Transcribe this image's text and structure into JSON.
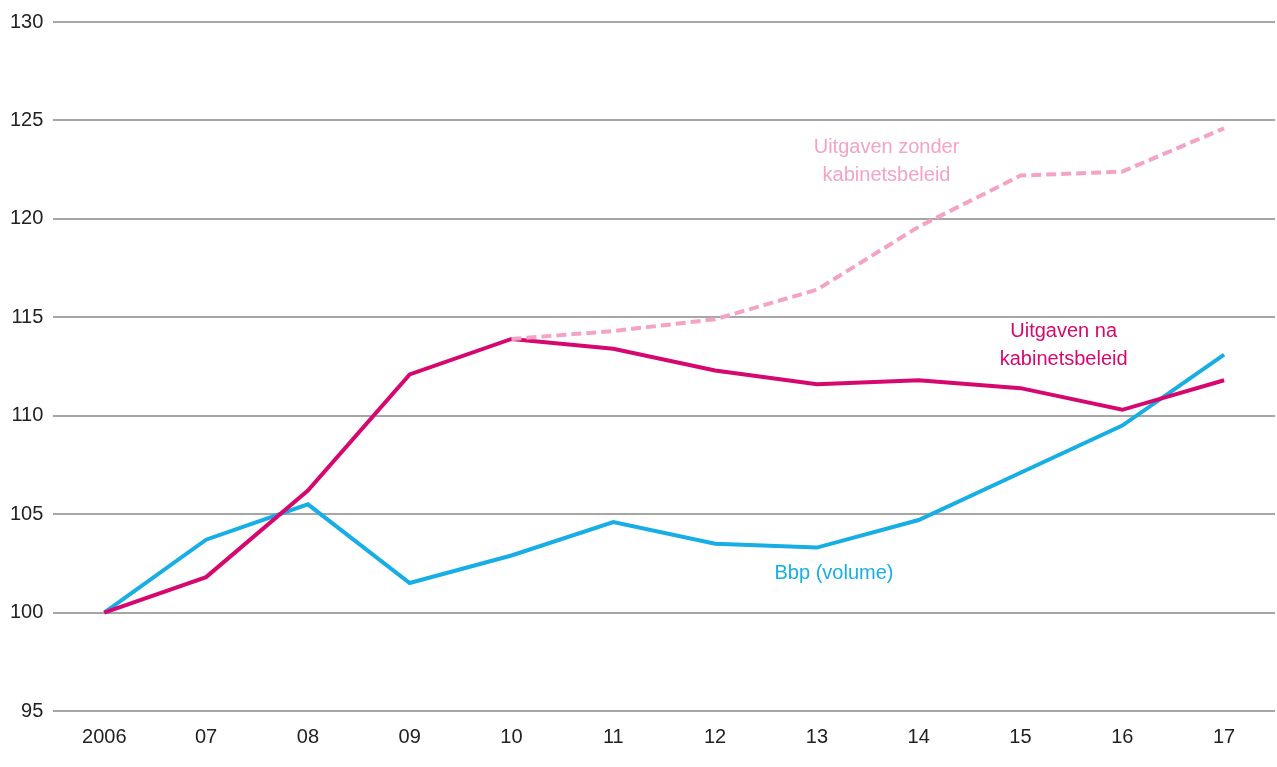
{
  "chart_data": {
    "type": "line",
    "categories": [
      "2006",
      "07",
      "08",
      "09",
      "10",
      "11",
      "12",
      "13",
      "14",
      "15",
      "16",
      "17"
    ],
    "series": [
      {
        "name": "Uitgaven zonder kabinetsbeleid",
        "color": "#f4a3c6",
        "line_style": "dashed",
        "values": [
          null,
          null,
          null,
          null,
          113.9,
          114.3,
          114.9,
          116.4,
          119.6,
          122.2,
          122.4,
          124.6
        ]
      },
      {
        "name": "Uitgaven na kabinetsbeleid",
        "color": "#d6086f",
        "line_style": "solid",
        "values": [
          100,
          101.8,
          106.2,
          112.1,
          113.9,
          113.4,
          112.3,
          111.6,
          111.8,
          111.4,
          110.3,
          111.8
        ]
      },
      {
        "name": "Bbp (volume)",
        "color": "#16aee5",
        "line_style": "solid",
        "values": [
          100,
          103.7,
          105.5,
          101.5,
          102.9,
          104.6,
          103.5,
          103.3,
          104.7,
          107.1,
          109.5,
          113.1
        ]
      }
    ],
    "ylim": [
      95,
      130
    ],
    "yticks": [
      95,
      100,
      105,
      110,
      115,
      120,
      125,
      130
    ],
    "grid": true
  }
}
